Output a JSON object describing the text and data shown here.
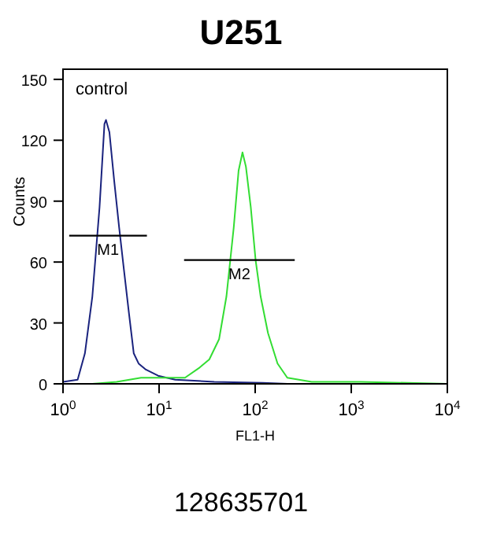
{
  "chart_data": {
    "type": "line",
    "title": "U251",
    "xlabel": "FL1-H",
    "ylabel": "Counts",
    "log": "x",
    "grid": false,
    "legend": false,
    "marker": "none",
    "xlim": [
      1,
      10000
    ],
    "xticks": [
      {
        "value": 1,
        "label": "10$^{0}$"
      },
      {
        "value": 10,
        "label": "10$^{1}$"
      },
      {
        "value": 100,
        "label": "10$^{2}$"
      },
      {
        "value": 1000,
        "label": "10$^{3}$"
      },
      {
        "value": 10000,
        "label": "10$^{4}$"
      }
    ],
    "ylim": [
      0,
      155
    ],
    "yticks": [
      0,
      30,
      60,
      90,
      120,
      150
    ],
    "series": [
      {
        "color": "#1a237e",
        "x": [
          1,
          1.42,
          1.69,
          2.02,
          2.4,
          2.7,
          2.8,
          3.04,
          3.41,
          3.84,
          4.31,
          4.85,
          5.45,
          6.12,
          7.29,
          9.77,
          14.7,
          37.5,
          120,
          217,
          10000
        ],
        "values": [
          1,
          2,
          15,
          43,
          87,
          128,
          130,
          124,
          100,
          77,
          56,
          35,
          15,
          10,
          7,
          4,
          2,
          1,
          0.5,
          0,
          0
        ]
      },
      {
        "color": "#33dd33",
        "x": [
          2.02,
          3.62,
          6.49,
          11.6,
          18.6,
          26.4,
          33.3,
          42.1,
          50.2,
          59.8,
          67.2,
          73.8,
          80.1,
          90,
          101,
          114,
          136,
          171,
          216,
          388,
          1248,
          10000
        ],
        "values": [
          0,
          1,
          3,
          3,
          3,
          8,
          12,
          22,
          43,
          77,
          105,
          114,
          107,
          87,
          61,
          43,
          25,
          10,
          3,
          1,
          1,
          0
        ]
      },
      {
        "name": "M1",
        "type": "line",
        "color": "#000000",
        "x": [
          1.16,
          7.47
        ],
        "values": [
          73,
          73
        ]
      },
      {
        "name": "M2",
        "type": "line",
        "color": "#000000",
        "x": [
          18.2,
          258
        ],
        "values": [
          61,
          61
        ]
      }
    ],
    "annotations": [
      "control",
      "128635701"
    ]
  }
}
